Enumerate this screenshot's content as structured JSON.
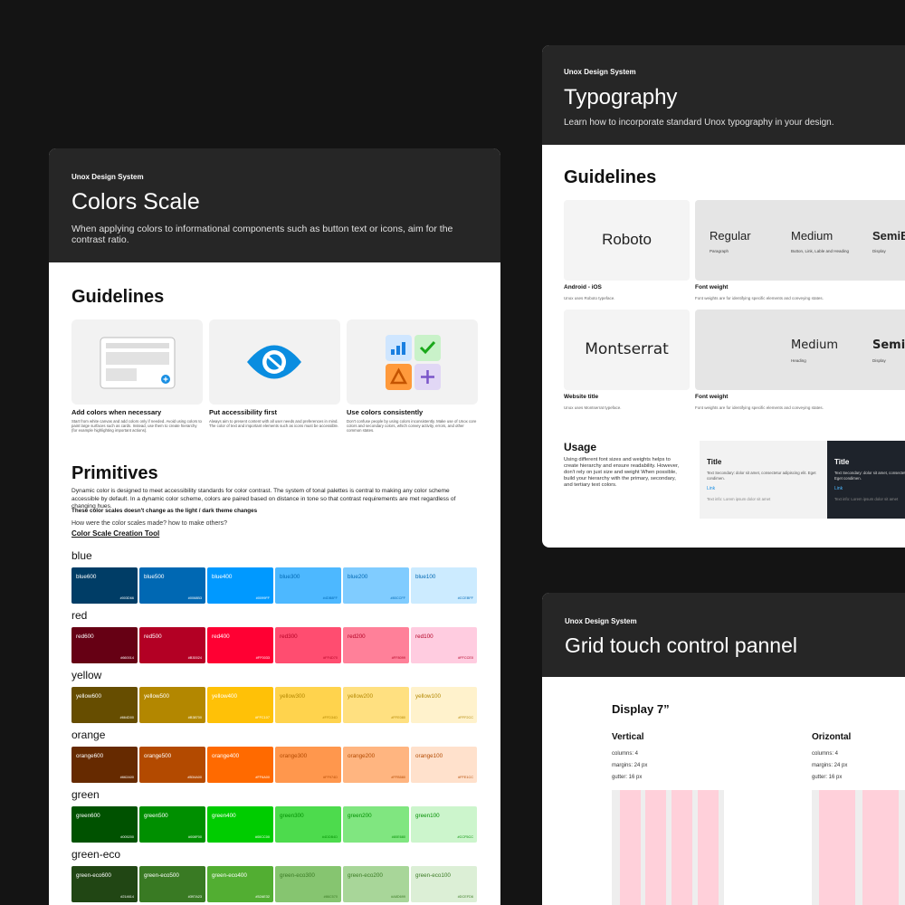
{
  "colors_card": {
    "brand": "Unox Design System",
    "title": "Colors Scale",
    "description": "When applying colors to informational components such as button text or icons, aim for the contrast ratio.",
    "guidelines_title": "Guidelines",
    "guidelines": [
      {
        "title": "Add colors when necessary",
        "text": "Start from white canvas and add colors only if needed. Avoid using colors to paint large surfaces such as cards. Instead, use them to create hierarchy (for example highlighting important actions)."
      },
      {
        "title": "Put accessibility first",
        "text": "Always aim to present content with all user needs and preferences in mind. The color of text and important elements such as icons must be accessible."
      },
      {
        "title": "Use colors consistently",
        "text": "Don't confuse people by using colors inconsistently. Make use of Unox core colors and secondary colors, which convey activity, errors, and other common states."
      }
    ],
    "primitives_title": "Primitives",
    "primitives_text": "Dynamic color is designed to meet accessibility standards for color contrast. The system of tonal palettes is central to making any color scheme accessible by default. In a dynamic color scheme, colors are paired based on distance in tone so that contrast requirements are met regardless of changing hues.",
    "note": "These color scales doesn't change as the light / dark theme changes",
    "question": "How were the color scales made? how to make others?",
    "link": "Color Scale Creation Tool",
    "scales": [
      {
        "name": "blue",
        "swatches": [
          {
            "name": "blue600",
            "hex": "#003D66"
          },
          {
            "name": "blue500",
            "hex": "#0068B3"
          },
          {
            "name": "blue400",
            "hex": "#0099FF"
          },
          {
            "name": "blue300",
            "hex": "#4DB8FF"
          },
          {
            "name": "blue200",
            "hex": "#80CCFF"
          },
          {
            "name": "blue100",
            "hex": "#CCEBFF"
          }
        ]
      },
      {
        "name": "red",
        "swatches": [
          {
            "name": "red600",
            "hex": "#660014"
          },
          {
            "name": "red500",
            "hex": "#B30024"
          },
          {
            "name": "red400",
            "hex": "#FF0033"
          },
          {
            "name": "red300",
            "hex": "#FF4D70"
          },
          {
            "name": "red200",
            "hex": "#FF8099"
          },
          {
            "name": "red100",
            "hex": "#FFCCE0"
          }
        ]
      },
      {
        "name": "yellow",
        "swatches": [
          {
            "name": "yellow600",
            "hex": "#664D00"
          },
          {
            "name": "yellow500",
            "hex": "#B38700"
          },
          {
            "name": "yellow400",
            "hex": "#FFC107"
          },
          {
            "name": "yellow300",
            "hex": "#FFD34D"
          },
          {
            "name": "yellow200",
            "hex": "#FFE080"
          },
          {
            "name": "yellow100",
            "hex": "#FFF2CC"
          }
        ]
      },
      {
        "name": "orange",
        "swatches": [
          {
            "name": "orange600",
            "hex": "#662A00"
          },
          {
            "name": "orange500",
            "hex": "#B34A00"
          },
          {
            "name": "orange400",
            "hex": "#FF6A00"
          },
          {
            "name": "orange300",
            "hex": "#FF974D"
          },
          {
            "name": "orange200",
            "hex": "#FFB580"
          },
          {
            "name": "orange100",
            "hex": "#FFE1CC"
          }
        ]
      },
      {
        "name": "green",
        "swatches": [
          {
            "name": "green600",
            "hex": "#005200"
          },
          {
            "name": "green500",
            "hex": "#008F00"
          },
          {
            "name": "green400",
            "hex": "#00CC00"
          },
          {
            "name": "green300",
            "hex": "#4DDB4D"
          },
          {
            "name": "green200",
            "hex": "#80E680"
          },
          {
            "name": "green100",
            "hex": "#CCF5CC"
          }
        ]
      },
      {
        "name": "green-eco",
        "swatches": [
          {
            "name": "green-eco600",
            "hex": "#214614"
          },
          {
            "name": "green-eco500",
            "hex": "#397A23"
          },
          {
            "name": "green-eco400",
            "hex": "#52AE32"
          },
          {
            "name": "green-eco300",
            "hex": "#86C570"
          },
          {
            "name": "green-eco200",
            "hex": "#A8D699"
          },
          {
            "name": "green-eco100",
            "hex": "#DCEFD6"
          }
        ]
      }
    ]
  },
  "typography_card": {
    "brand": "Unox Design System",
    "title": "Typography",
    "description": "Learn how to incorporate standard Unox typography in your design.",
    "guidelines_title": "Guidelines",
    "fonts": [
      {
        "sample": "Roboto",
        "caption": "Android - iOS",
        "caption_text": "Unox uses Roboto typeface.",
        "weights": [
          {
            "name": "Regular",
            "usage": "Paragraph"
          },
          {
            "name": "Medium",
            "usage": "Button, Link, Lable and Heading"
          },
          {
            "name": "SemiBold",
            "usage": "Display"
          }
        ],
        "weights_caption": "Font weight",
        "weights_text": "Font weights are for identifying specific elements and conveying states."
      },
      {
        "sample": "Montserrat",
        "caption": "Website title",
        "caption_text": "Unox uses Montserrat typeface.",
        "weights": [
          {
            "name": "Medium",
            "usage": "Heading"
          },
          {
            "name": "SemiBold",
            "usage": "Display"
          }
        ],
        "weights_caption": "Font weight",
        "weights_text": "Font weights are for identifying specific elements and conveying states."
      }
    ],
    "usage_title": "Usage",
    "usage_text": "Using different font sizes and weights helps to create hierarchy and ensure readability. However, don't rely on just size and weight When possible, build your hierarchy with the primary, secondary, and tertiary text colors.",
    "previews": [
      {
        "title": "Title",
        "secondary": "Text Secondary: dolor sit amet, consectetur adipiscing elit. Eget condimen.",
        "link": "Link",
        "info": "Text info: Lorem ipsum dolor sit amet"
      },
      {
        "title": "Title",
        "secondary": "Text Secondary: dolor sit amet, consectetur adipiscing elit. Eget condimen.",
        "link": "Link",
        "info": "Text info: Lorem ipsum dolor sit amet"
      }
    ]
  },
  "grid_card": {
    "brand": "Unox Design System",
    "title": "Grid touch control pannel",
    "display": "Display 7”",
    "layouts": [
      {
        "name": "Vertical",
        "specs": [
          "columns: 4",
          "margins: 24 px",
          "gutter: 16 px"
        ]
      },
      {
        "name": "Orizontal",
        "specs": [
          "columns: 4",
          "margins: 24 px",
          "gutter: 16 px"
        ]
      }
    ]
  }
}
